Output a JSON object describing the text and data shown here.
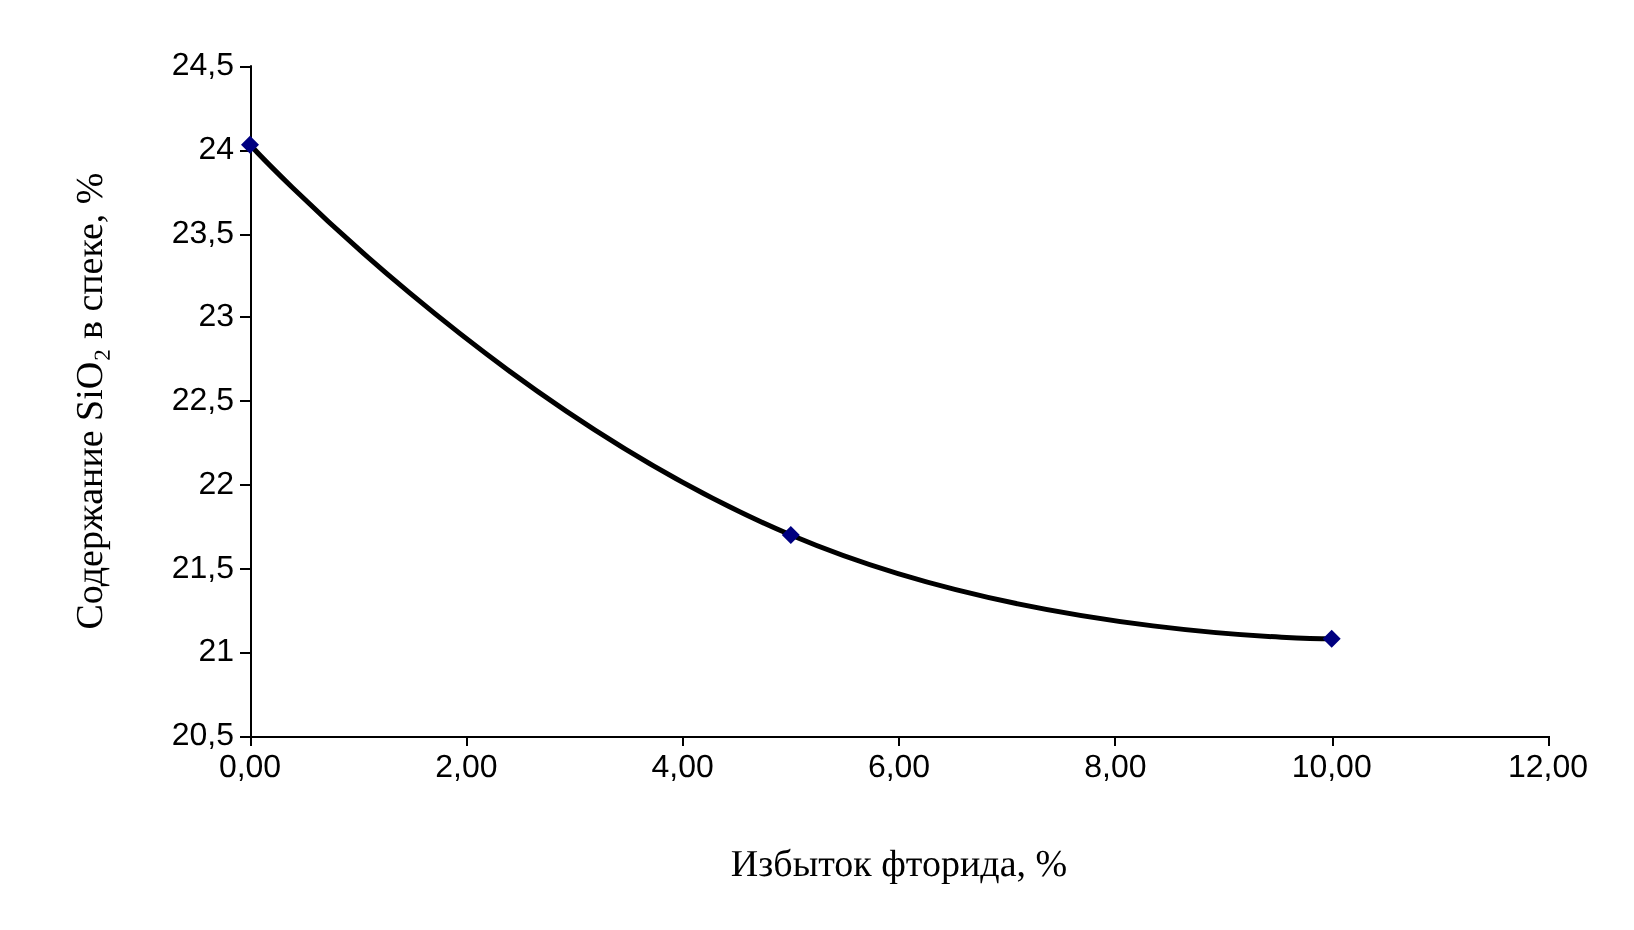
{
  "chart_data": {
    "type": "line",
    "xlabel": "Избыток фторида, %",
    "ylabel": "Содержание SiO₂ в спеке, %",
    "x": [
      0,
      5,
      10
    ],
    "series": [
      {
        "color": "#000000",
        "values": [
          24.03,
          21.7,
          21.08
        ]
      }
    ],
    "marker": "diamond",
    "line_style": "solid",
    "grid": false,
    "xlim": [
      0,
      12
    ],
    "xticks": [
      {
        "value": 0,
        "label": "0,00"
      },
      {
        "value": 2,
        "label": "2,00"
      },
      {
        "value": 4,
        "label": "4,00"
      },
      {
        "value": 6,
        "label": "6,00"
      },
      {
        "value": 8,
        "label": "8,00"
      },
      {
        "value": 10,
        "label": "10,00"
      },
      {
        "value": 12,
        "label": "12,00"
      }
    ],
    "ylim": [
      20.5,
      24.5
    ],
    "yticks": [
      {
        "value": 20.5,
        "label": "20,5"
      },
      21,
      {
        "value": 21.5,
        "label": "21,5"
      },
      22,
      {
        "value": 22.5,
        "label": "22,5"
      },
      23,
      {
        "value": 23.5,
        "label": "23,5"
      },
      24,
      {
        "value": 24.5,
        "label": "24,5"
      }
    ]
  }
}
